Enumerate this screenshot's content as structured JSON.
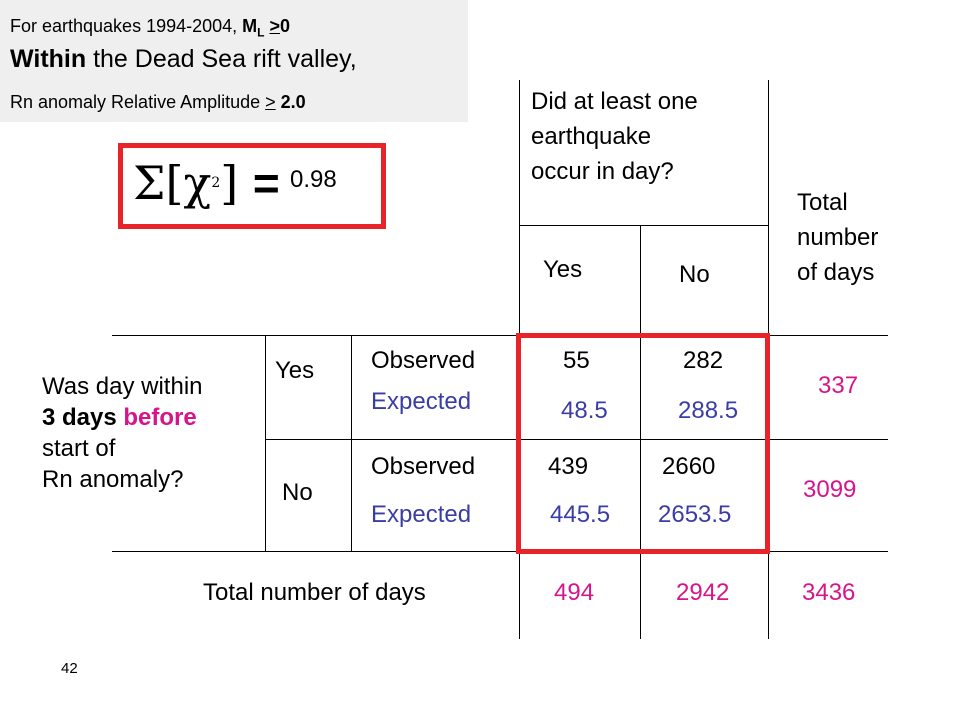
{
  "header": {
    "line1_prefix": "For earthquakes 1994-2004, ",
    "line1_m": "M",
    "line1_sub": "L",
    "line1_cmp": ">",
    "line1_val": "0",
    "line2_bold": "Within",
    "line2_rest": " the Dead Sea rift valley,",
    "line3_prefix": "Rn anomaly Relative Amplitude ",
    "line3_cmp": ">",
    "line3_val": " 2.0"
  },
  "chi": {
    "sigma": "Σ",
    "open": "[",
    "chi": "χ",
    "sup": "2",
    "close": "]",
    "equals": "=",
    "value": "0.98"
  },
  "question_top": [
    "Did  at least one",
    "earthquake",
    "occur in day?"
  ],
  "total_header": [
    "Total",
    "number",
    "of days"
  ],
  "col_headers": {
    "yes": "Yes",
    "no": "No"
  },
  "question_left": {
    "line1": "Was day within",
    "line2_bold": "3 days ",
    "line2_colored": "before",
    "line3": "start of",
    "line4": "Rn anomaly?"
  },
  "rows": [
    {
      "label": "Yes",
      "observed_label": "Observed",
      "expected_label": "Expected",
      "observed_yes": "55",
      "observed_no": "282",
      "expected_yes": "48.5",
      "expected_no": "288.5",
      "total": "337"
    },
    {
      "label": "No",
      "observed_label": "Observed",
      "expected_label": "Expected",
      "observed_yes": "439",
      "observed_no": "2660",
      "expected_yes": "445.5",
      "expected_no": "2653.5",
      "total": "3099"
    }
  ],
  "totals_row": {
    "label": "Total number of days",
    "yes": "494",
    "no": "2942",
    "all": "3436"
  },
  "page_number": "42",
  "colors": {
    "highlight_red": "#e8242a",
    "expected_blue": "#3a3da6",
    "total_magenta": "#d6148c",
    "header_bg": "#efefef"
  }
}
